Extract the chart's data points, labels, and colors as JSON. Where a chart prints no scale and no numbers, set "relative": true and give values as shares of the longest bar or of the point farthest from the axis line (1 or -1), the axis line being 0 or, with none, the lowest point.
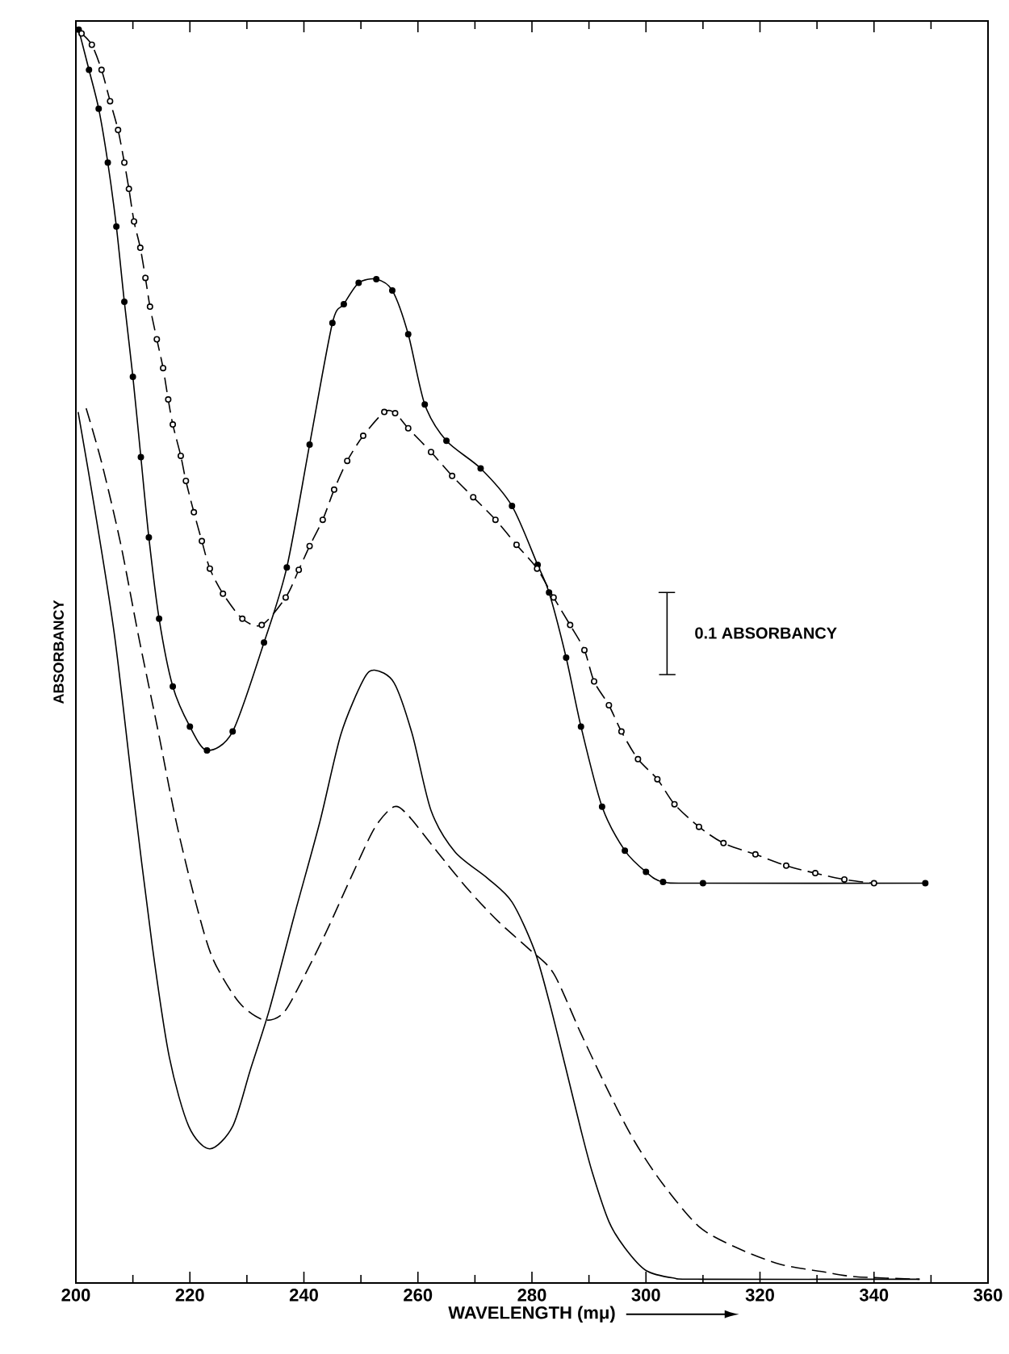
{
  "chart_data": {
    "type": "line",
    "xlabel": "WAVELENGTH (mμ)",
    "ylabel": "ABSORBANCY",
    "relative": true,
    "tick_labels": "x",
    "grid": false,
    "xlim": [
      200,
      360
    ],
    "xticks": [
      200,
      220,
      240,
      260,
      280,
      300,
      320,
      340,
      360
    ],
    "annotations": [
      "0.1 ABSORBANCY"
    ],
    "series": [
      {
        "color": "#000000",
        "line_style": "solid",
        "marker": "circle",
        "x": [
          200.5,
          202.3,
          204,
          205.6,
          207.1,
          208.5,
          210,
          211.4,
          212.8,
          214.6,
          217,
          220,
          223,
          227.5,
          233,
          237,
          241,
          245,
          247,
          249.6,
          252.7,
          255.5,
          258.3,
          261.2,
          265,
          271,
          276.5,
          281,
          283,
          286,
          288.6,
          292.3,
          296.3,
          300,
          303,
          310,
          349
        ],
        "values": [
          1.0,
          0.968,
          0.937,
          0.894,
          0.843,
          0.783,
          0.723,
          0.659,
          0.595,
          0.53,
          0.476,
          0.444,
          0.425,
          0.44,
          0.511,
          0.571,
          0.669,
          0.766,
          0.781,
          0.798,
          0.801,
          0.792,
          0.757,
          0.701,
          0.672,
          0.65,
          0.62,
          0.573,
          0.551,
          0.499,
          0.444,
          0.38,
          0.345,
          0.328,
          0.32,
          0.319,
          0.319
        ]
      },
      {
        "color": "#000000",
        "line_style": "dashed",
        "marker": "circle",
        "x": [
          201,
          202.8,
          204.5,
          206,
          207.4,
          208.5,
          209.3,
          210.2,
          211.3,
          212.2,
          213,
          214.2,
          215.3,
          216.2,
          217,
          218.4,
          219.3,
          220.7,
          222.1,
          223.5,
          225.8,
          229.2,
          232.6,
          236.8,
          239.1,
          241,
          243.3,
          245.3,
          247.6,
          250.4,
          254.1,
          256,
          258.3,
          262.3,
          266,
          269.7,
          273.6,
          277.3,
          280.9,
          283.8,
          286.7,
          289.2,
          290.9,
          293.5,
          295.7,
          298.6,
          302,
          305,
          309.3,
          313.6,
          319.2,
          324.6,
          329.7,
          334.8,
          340
        ],
        "values": [
          0.997,
          0.988,
          0.968,
          0.943,
          0.92,
          0.894,
          0.873,
          0.847,
          0.826,
          0.802,
          0.779,
          0.753,
          0.73,
          0.705,
          0.685,
          0.66,
          0.64,
          0.615,
          0.592,
          0.57,
          0.55,
          0.53,
          0.525,
          0.547,
          0.569,
          0.588,
          0.609,
          0.633,
          0.656,
          0.676,
          0.695,
          0.694,
          0.682,
          0.663,
          0.644,
          0.627,
          0.609,
          0.589,
          0.57,
          0.547,
          0.525,
          0.505,
          0.48,
          0.461,
          0.44,
          0.418,
          0.402,
          0.382,
          0.364,
          0.351,
          0.342,
          0.333,
          0.327,
          0.322,
          0.319
        ]
      },
      {
        "color": "#000000",
        "line_style": "solid",
        "marker": "none",
        "x": [
          200.4,
          203.4,
          206.8,
          210,
          213.4,
          216.4,
          219.8,
          223.5,
          227.5,
          230.6,
          234,
          238.3,
          242.8,
          246.5,
          250.4,
          252.4,
          255.8,
          259,
          262.3,
          266.5,
          272.2,
          276.5,
          280.4,
          283,
          285.8,
          288.6,
          290.6,
          293.5,
          296.3,
          300,
          304.8,
          310,
          348
        ],
        "values": [
          0.695,
          0.615,
          0.516,
          0.393,
          0.269,
          0.18,
          0.125,
          0.107,
          0.125,
          0.17,
          0.219,
          0.293,
          0.368,
          0.438,
          0.481,
          0.489,
          0.479,
          0.438,
          0.377,
          0.344,
          0.323,
          0.304,
          0.266,
          0.225,
          0.174,
          0.122,
          0.088,
          0.049,
          0.028,
          0.01,
          0.004,
          0.003,
          0.003
        ]
      },
      {
        "color": "#000000",
        "line_style": "solid",
        "marker": "none",
        "x": [
          302.3,
          305.1,
          303.7,
          303.7,
          302.3,
          305.1
        ],
        "values": [
          0.4855,
          0.4855,
          0.4855,
          0.551,
          0.551,
          0.551
        ]
      },
      {
        "color": "#000000",
        "line_style": "dashed",
        "marker": "none",
        "x": [
          201.8,
          204.5,
          207.8,
          211,
          214.4,
          217.6,
          221,
          224,
          228.6,
          232.9,
          236.3,
          239.4,
          243.8,
          248.2,
          252.4,
          255.8,
          258.3,
          263.4,
          268.8,
          274.2,
          279.6,
          283.8,
          288.6,
          293.5,
          298,
          302.8,
          309.3,
          316,
          323.5,
          331,
          336.8,
          348
        ],
        "values": [
          0.698,
          0.655,
          0.591,
          0.516,
          0.441,
          0.368,
          0.304,
          0.259,
          0.224,
          0.21,
          0.215,
          0.239,
          0.279,
          0.323,
          0.363,
          0.38,
          0.373,
          0.344,
          0.314,
          0.288,
          0.266,
          0.247,
          0.199,
          0.152,
          0.113,
          0.08,
          0.045,
          0.028,
          0.015,
          0.009,
          0.005,
          0.003
        ]
      }
    ]
  }
}
